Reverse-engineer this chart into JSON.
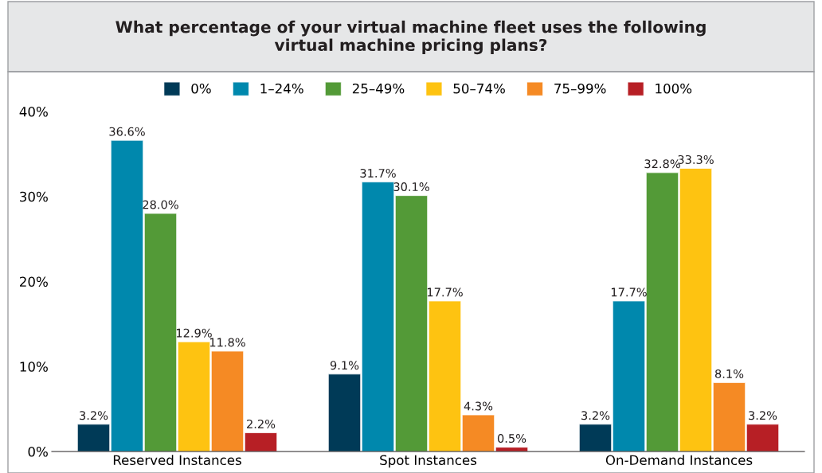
{
  "chart_data": {
    "type": "bar",
    "title": "What percentage of your virtual machine fleet uses the following\nvirtual machine pricing plans?",
    "categories": [
      "Reserved Instances",
      "Spot Instances",
      "On-Demand Instances"
    ],
    "series": [
      {
        "name": "0%",
        "color": "#003a57",
        "values": [
          3.2,
          9.1,
          3.2
        ],
        "value_labels": [
          "3.2%",
          "9.1%",
          "3.2%"
        ]
      },
      {
        "name": "1–24%",
        "color": "#0088ad",
        "values": [
          36.6,
          31.7,
          17.7
        ],
        "value_labels": [
          "36.6%",
          "31.7%",
          "17.7%"
        ]
      },
      {
        "name": "25–49%",
        "color": "#539a37",
        "values": [
          28.0,
          30.1,
          32.8
        ],
        "value_labels": [
          "28.0%",
          "30.1%",
          "32.8%"
        ]
      },
      {
        "name": "50–74%",
        "color": "#fec311",
        "values": [
          12.9,
          17.7,
          33.3
        ],
        "value_labels": [
          "12.9%",
          "17.7%",
          "33.3%"
        ]
      },
      {
        "name": "75–99%",
        "color": "#f58a24",
        "values": [
          11.8,
          4.3,
          8.1
        ],
        "value_labels": [
          "11.8%",
          "4.3%",
          "8.1%"
        ]
      },
      {
        "name": "100%",
        "color": "#b71f25",
        "values": [
          2.2,
          0.5,
          3.2
        ],
        "value_labels": [
          "2.2%",
          "0.5%",
          "3.2%"
        ]
      }
    ],
    "ylim": [
      0,
      40
    ],
    "yticks": [
      {
        "value": 0,
        "label": "0%"
      },
      {
        "value": 10,
        "label": "10%"
      },
      {
        "value": 20,
        "label": "20%"
      },
      {
        "value": 30,
        "label": "30%"
      },
      {
        "value": 40,
        "label": "40%"
      }
    ],
    "legend": "top",
    "grid": false
  }
}
